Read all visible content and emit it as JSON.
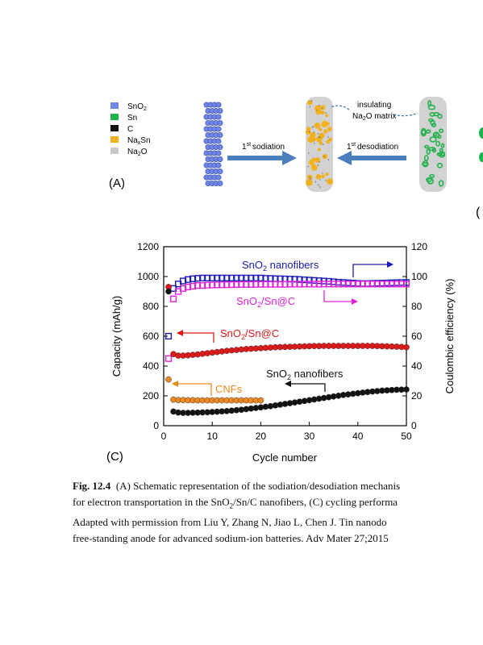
{
  "figure_a": {
    "panel_label": "(A)",
    "legend": [
      {
        "label": "SnO2",
        "color": "#6f86e6"
      },
      {
        "label": "Sn",
        "color": "#1fb24a"
      },
      {
        "label": "C",
        "color": "#111111"
      },
      {
        "label": "NaxSn",
        "color": "#f2b01e"
      },
      {
        "label": "Na2O",
        "color": "#c8c8c8"
      }
    ],
    "arrow_sodiation": "sodiation",
    "arrow_desodiation": "desodiation",
    "ordinal_sup": "st",
    "ordinal_num": "1",
    "insulating_line1": "insulating",
    "insulating_line2": "Na2O matrix",
    "next_panel_fragment": "("
  },
  "figure_c": {
    "panel_label": "(C)"
  },
  "chart_data": {
    "type": "scatter",
    "xlabel": "Cycle number",
    "ylabel_left": "Capacity (mAh/g)",
    "ylabel_right": "Coulombic efficiency (%)",
    "xlim": [
      0,
      50
    ],
    "ylim_left": [
      0,
      1200
    ],
    "ylim_right": [
      0,
      120
    ],
    "x_ticks": [
      0,
      10,
      20,
      30,
      40,
      50
    ],
    "y_ticks_left": [
      0,
      200,
      400,
      600,
      800,
      1000,
      1200
    ],
    "y_ticks_right": [
      0,
      20,
      40,
      60,
      80,
      100,
      120
    ],
    "series": [
      {
        "name": "SnO2 nanofibers",
        "axis": "right",
        "marker": "square-open",
        "color": "#1a1ab8",
        "x": [
          1,
          2,
          3,
          4,
          5,
          6,
          7,
          8,
          9,
          10,
          11,
          12,
          13,
          14,
          15,
          16,
          17,
          18,
          19,
          20,
          21,
          22,
          23,
          24,
          25,
          26,
          27,
          28,
          29,
          30,
          31,
          32,
          33,
          34,
          35,
          36,
          37,
          38,
          39,
          40,
          41,
          42,
          43,
          44,
          45,
          46,
          47,
          48,
          49,
          50
        ],
        "y": [
          60,
          92,
          95,
          97,
          98,
          98.5,
          98.8,
          99,
          99,
          99,
          99,
          99,
          99,
          99,
          99,
          99,
          99,
          99,
          99,
          99,
          98.8,
          98.7,
          98.6,
          98.5,
          98.4,
          98.3,
          98.2,
          98,
          97.8,
          97.6,
          97.4,
          97.2,
          97,
          96.8,
          96.5,
          96.2,
          96,
          95.8,
          95.6,
          95.4,
          95.3,
          95.3,
          95.4,
          95.5,
          95.6,
          95.7,
          95.8,
          95.9,
          96,
          96
        ]
      },
      {
        "name": "SnO2/Sn@C",
        "axis": "right",
        "marker": "square-open",
        "color": "#e020d8",
        "x": [
          1,
          2,
          3,
          4,
          5,
          6,
          7,
          8,
          9,
          10,
          11,
          12,
          13,
          14,
          15,
          16,
          17,
          18,
          19,
          20,
          21,
          22,
          23,
          24,
          25,
          26,
          27,
          28,
          29,
          30,
          31,
          32,
          33,
          34,
          35,
          36,
          37,
          38,
          39,
          40,
          41,
          42,
          43,
          44,
          45,
          46,
          47,
          48,
          49,
          50
        ],
        "y": [
          45,
          85,
          90,
          92,
          93,
          93.5,
          94,
          94,
          94.2,
          94.3,
          94.4,
          94.5,
          94.5,
          94.6,
          94.6,
          94.7,
          94.7,
          94.7,
          94.8,
          94.8,
          94.8,
          94.8,
          94.8,
          94.8,
          94.8,
          94.9,
          94.9,
          94.9,
          94.9,
          94.9,
          94.9,
          94.9,
          95,
          95,
          95,
          95,
          95,
          95,
          95,
          95,
          95,
          95,
          95,
          95,
          95,
          95,
          95,
          95,
          95,
          95
        ]
      },
      {
        "name": "SnO2/Sn@C",
        "axis": "left",
        "marker": "circle",
        "color": "#e01818",
        "x": [
          1,
          2,
          3,
          4,
          5,
          6,
          7,
          8,
          9,
          10,
          11,
          12,
          13,
          14,
          15,
          16,
          17,
          18,
          19,
          20,
          21,
          22,
          23,
          24,
          25,
          26,
          27,
          28,
          29,
          30,
          31,
          32,
          33,
          34,
          35,
          36,
          37,
          38,
          39,
          40,
          41,
          42,
          43,
          44,
          45,
          46,
          47,
          48,
          49,
          50
        ],
        "y": [
          930,
          480,
          470,
          470,
          472,
          475,
          478,
          482,
          486,
          490,
          494,
          498,
          502,
          505,
          508,
          511,
          514,
          516,
          518,
          520,
          522,
          524,
          526,
          527,
          528,
          529,
          530,
          531,
          532,
          533,
          534,
          534,
          535,
          535,
          535,
          535,
          535,
          535,
          535,
          535,
          535,
          535,
          535,
          534,
          533,
          532,
          531,
          530,
          528,
          526
        ]
      },
      {
        "name": "CNFs",
        "axis": "left",
        "marker": "circle",
        "color": "#f08a20",
        "x": [
          1,
          2,
          3,
          4,
          5,
          6,
          7,
          8,
          9,
          10,
          11,
          12,
          13,
          14,
          15,
          16,
          17,
          18,
          19,
          20
        ],
        "y": [
          310,
          175,
          172,
          172,
          171,
          171,
          170,
          170,
          170,
          170,
          170,
          170,
          170,
          170,
          170,
          170,
          170,
          170,
          170,
          170
        ]
      },
      {
        "name": "SnO2 nanofibers",
        "axis": "left",
        "marker": "circle",
        "color": "#111111",
        "x": [
          1,
          2,
          3,
          4,
          5,
          6,
          7,
          8,
          9,
          10,
          11,
          12,
          13,
          14,
          15,
          16,
          17,
          18,
          19,
          20,
          21,
          22,
          23,
          24,
          25,
          26,
          27,
          28,
          29,
          30,
          31,
          32,
          33,
          34,
          35,
          36,
          37,
          38,
          39,
          40,
          41,
          42,
          43,
          44,
          45,
          46,
          47,
          48,
          49,
          50
        ],
        "y": [
          900,
          95,
          88,
          86,
          86,
          87,
          88,
          89,
          90,
          92,
          94,
          96,
          98,
          101,
          104,
          107,
          111,
          115,
          119,
          123,
          127,
          131,
          136,
          141,
          146,
          151,
          156,
          161,
          166,
          171,
          176,
          181,
          186,
          191,
          196,
          201,
          206,
          210,
          214,
          218,
          222,
          226,
          229,
          232,
          235,
          237,
          239,
          241,
          242,
          243
        ]
      }
    ],
    "annotations": [
      {
        "text": "SnO2 nanofibers",
        "sub": "2",
        "color": "#1a1ab8",
        "points_to": "right"
      },
      {
        "text": "SnO2/Sn@C",
        "sub": "2",
        "color": "#e020d8",
        "points_to": "right"
      },
      {
        "text": "SnO2/Sn@C",
        "sub": "2",
        "color": "#e01818",
        "points_to": "left"
      },
      {
        "text": "SnO2 nanofibers",
        "sub": "2",
        "color": "#111111",
        "points_to": "left"
      },
      {
        "text": "CNFs",
        "color": "#f08a20",
        "points_to": "left"
      }
    ]
  },
  "caption": {
    "fig_label": "Fig. 12.4",
    "line1": "(A) Schematic representation of the sodiation/desodiation mechanis",
    "line2a": "for electron transportation in the SnO",
    "line2b": "/Sn/C nanofibers, (C) cycling performa",
    "line3": "Adapted with permission from Liu Y, Zhang N, Jiao L, Chen J. Tin nanodo",
    "line4": "free-standing anode for advanced sodium-ion batteries. Adv Mater 27;2015"
  }
}
